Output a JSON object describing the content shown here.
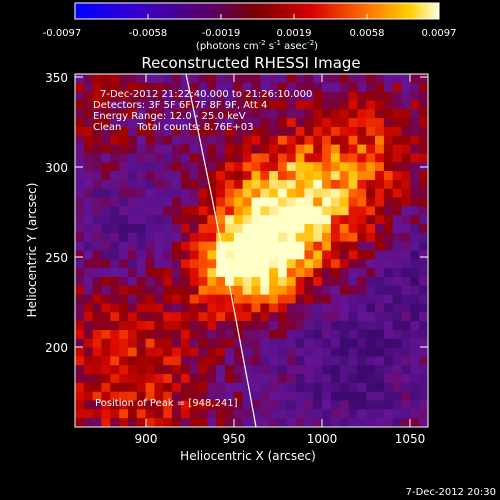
{
  "colorbar": {
    "ticks": [
      "-0.0097",
      "-0.0058",
      "-0.0019",
      "0.0019",
      "0.0058",
      "0.0097"
    ],
    "units": {
      "prefix": "(photons cm",
      "sup1": "-2",
      "mid1": " s",
      "sup2": "-1",
      "mid2": " asec",
      "sup3": "-2",
      "suffix": ")"
    }
  },
  "plot": {
    "title": "Reconstructed RHESSI Image",
    "xlabel": "Heliocentric X (arcsec)",
    "ylabel": "Heliocentric Y (arcsec)",
    "xticks": [
      "900",
      "950",
      "1000",
      "1050"
    ],
    "yticks": [
      "350",
      "300",
      "250",
      "200"
    ]
  },
  "info": {
    "time_range": "7-Dec-2012 21:22:40.000 to 21:26:10.000",
    "detectors": "Detectors: 3F 5F 6F 7F 8F 9F, Att 4",
    "energy": "Energy Range: 12.0 - 25.0 keV",
    "method": "Clean     Total counts: 8.76E+03",
    "peak": "Position of Peak = [948,241]"
  },
  "timestamp": "7-Dec-2012 20:30"
}
